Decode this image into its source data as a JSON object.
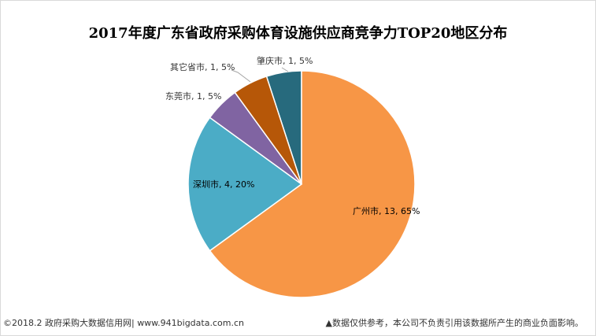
{
  "chart_data": {
    "type": "pie",
    "title": "2017年度广东省政府采购体育设施供应商竞争力TOP20地区分布",
    "slices": [
      {
        "name": "肇庆市",
        "value": 1,
        "percent": "5%",
        "label": "肇庆市, 1, 5%",
        "color": "#276a7d"
      },
      {
        "name": "广州市",
        "value": 13,
        "percent": "65%",
        "label": "广州市, 13, 65%",
        "color": "#f79646"
      },
      {
        "name": "深圳市",
        "value": 4,
        "percent": "20%",
        "label": "深圳市, 4, 20%",
        "color": "#4bacc6"
      },
      {
        "name": "东莞市",
        "value": 1,
        "percent": "5%",
        "label": "东莞市, 1, 5%",
        "color": "#8064a2"
      },
      {
        "name": "其它省市",
        "value": 1,
        "percent": "5%",
        "label": "其它省市, 1, 5%",
        "color": "#b65708"
      }
    ]
  },
  "footer": {
    "source": "©2018.2 政府采购大数据信用网| www.941bigdata.com.cn",
    "disclaimer": "▲数据仅供参考，本公司不负责引用该数据所产生的商业负面影响。"
  }
}
